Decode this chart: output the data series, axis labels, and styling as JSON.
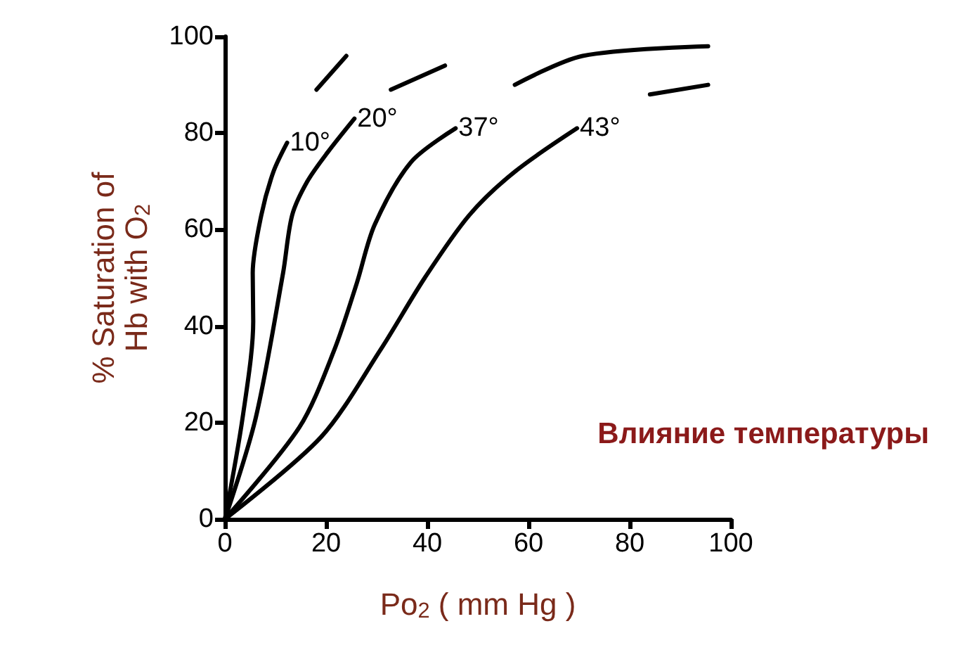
{
  "chart_data": {
    "type": "line",
    "xlabel": "Po$_{2}$ ( mm Hg )",
    "ylabel": "% Saturation of\nHb with O$_{2}$",
    "annotations": [
      "Влияние температуры"
    ],
    "xlim": [
      0,
      100
    ],
    "xticks": [
      0,
      20,
      40,
      60,
      80,
      100
    ],
    "ylim": [
      0,
      100
    ],
    "yticks": [
      0,
      20,
      40,
      60,
      80,
      100
    ],
    "grid": false,
    "legend": false,
    "marker": "none",
    "line_style": "solid",
    "series": [
      {
        "name": "10°",
        "color": "#000000",
        "x": [
          0,
          3.5,
          5.6,
          5.5,
          7.2,
          9.6,
          12.3,
          15,
          18.1,
          24
        ],
        "values": [
          0,
          21,
          41,
          51,
          63,
          72,
          78,
          null,
          89,
          96
        ]
      },
      {
        "name": "20°",
        "color": "#000000",
        "x": [
          0,
          6.1,
          11.5,
          13.3,
          16.3,
          20.3,
          25.6,
          29,
          32.8,
          43.5
        ],
        "values": [
          0,
          21,
          51,
          63,
          70,
          76,
          83,
          null,
          89,
          94
        ]
      },
      {
        "name": "37°",
        "color": "#000000",
        "x": [
          0,
          14.7,
          21.6,
          26.1,
          29.6,
          36.8,
          45.6,
          51,
          57.3,
          70.7,
          95.5
        ],
        "values": [
          0,
          19,
          35,
          49,
          61,
          74,
          81,
          null,
          90,
          96,
          98
        ]
      },
      {
        "name": "43°",
        "color": "#000000",
        "x": [
          0,
          19,
          30.7,
          39.5,
          48.3,
          57.3,
          69.6,
          77,
          84,
          95.5
        ],
        "values": [
          0,
          17,
          35,
          50,
          63,
          72,
          81,
          null,
          88,
          90
        ]
      }
    ]
  }
}
